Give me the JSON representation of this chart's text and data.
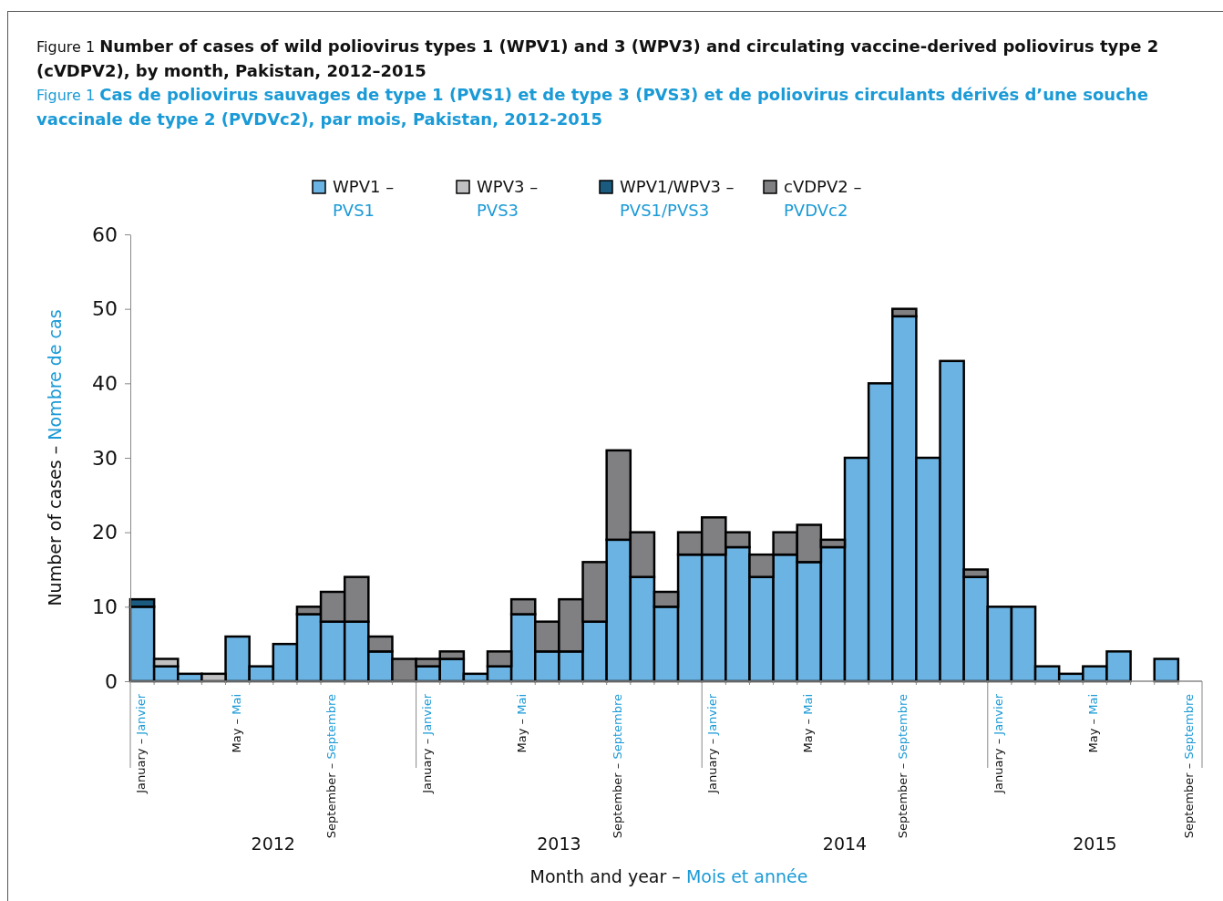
{
  "chart_data": {
    "type": "bar",
    "stacked": true,
    "title": "Figure 1  Number of cases of wild poliovirus types 1 (WPV1) and 3 (WPV3) and circulating vaccine-derived poliovirus type 2 (cVDPV2), by month, Pakistan, 2012–2015",
    "subtitle": "Figure 1  Cas de poliovirus sauvages de type 1 (PVS1) et de type 3 (PVS3) et de poliovirus circulants dérivés d’une souche vaccinale de type 2 (PVDVc2), par mois, Pakistan, 2012-2015",
    "xlabel": "Month and year – Mois et année",
    "ylabel": "Number of cases – Nombre de cas",
    "categories": [
      "January – Janvier",
      null,
      null,
      null,
      "May – Mai",
      null,
      null,
      null,
      "September – Septembre",
      null,
      null,
      null,
      "January – Janvier",
      null,
      null,
      null,
      "May – Mai",
      null,
      null,
      null,
      "September – Septembre",
      null,
      null,
      null,
      "January – Janvier",
      null,
      null,
      null,
      "May – Mai",
      null,
      null,
      null,
      "September – Septembre",
      null,
      null,
      null,
      "January – Janvier",
      null,
      null,
      null,
      "May – Mai",
      null,
      null,
      null,
      "September – Septembre"
    ],
    "series": [
      {
        "name": "WPV1 – PVS1",
        "color": "#6bb3e3",
        "values": [
          10,
          2,
          1,
          0,
          6,
          2,
          5,
          9,
          8,
          8,
          4,
          0,
          2,
          3,
          1,
          2,
          9,
          4,
          4,
          8,
          19,
          14,
          10,
          17,
          17,
          18,
          14,
          17,
          16,
          18,
          30,
          40,
          49,
          30,
          43,
          14,
          10,
          10,
          2,
          1,
          2,
          4,
          0,
          3,
          0
        ]
      },
      {
        "name": "WPV3 – PVS3",
        "color": "#c0c0c2",
        "values": [
          0,
          1,
          0,
          1,
          0,
          0,
          0,
          0,
          0,
          0,
          0,
          0,
          0,
          0,
          0,
          0,
          0,
          0,
          0,
          0,
          0,
          0,
          0,
          0,
          0,
          0,
          0,
          0,
          0,
          0,
          0,
          0,
          0,
          0,
          0,
          0,
          0,
          0,
          0,
          0,
          0,
          0,
          0,
          0,
          0
        ]
      },
      {
        "name": "WPV1/WPV3 – PVS1/PVS3",
        "color": "#1b5b80",
        "values": [
          1,
          0,
          0,
          0,
          0,
          0,
          0,
          0,
          0,
          0,
          0,
          0,
          0,
          0,
          0,
          0,
          0,
          0,
          0,
          0,
          0,
          0,
          0,
          0,
          0,
          0,
          0,
          0,
          0,
          0,
          0,
          0,
          0,
          0,
          0,
          0,
          0,
          0,
          0,
          0,
          0,
          0,
          0,
          0,
          0
        ]
      },
      {
        "name": "cVDPV2 – PVDVc2",
        "color": "#808083",
        "values": [
          0,
          0,
          0,
          0,
          0,
          0,
          0,
          1,
          4,
          6,
          2,
          3,
          1,
          1,
          0,
          2,
          2,
          4,
          7,
          8,
          12,
          6,
          2,
          3,
          5,
          2,
          3,
          3,
          5,
          1,
          0,
          0,
          1,
          0,
          0,
          1,
          0,
          0,
          0,
          0,
          0,
          0,
          0,
          0,
          0
        ]
      }
    ],
    "ylim": [
      0,
      60
    ],
    "yticks": [
      0,
      10,
      20,
      30,
      40,
      50,
      60
    ],
    "grid": false,
    "legend": "top",
    "annotations": [
      "2012",
      "2013",
      "2014",
      "2015"
    ]
  }
}
